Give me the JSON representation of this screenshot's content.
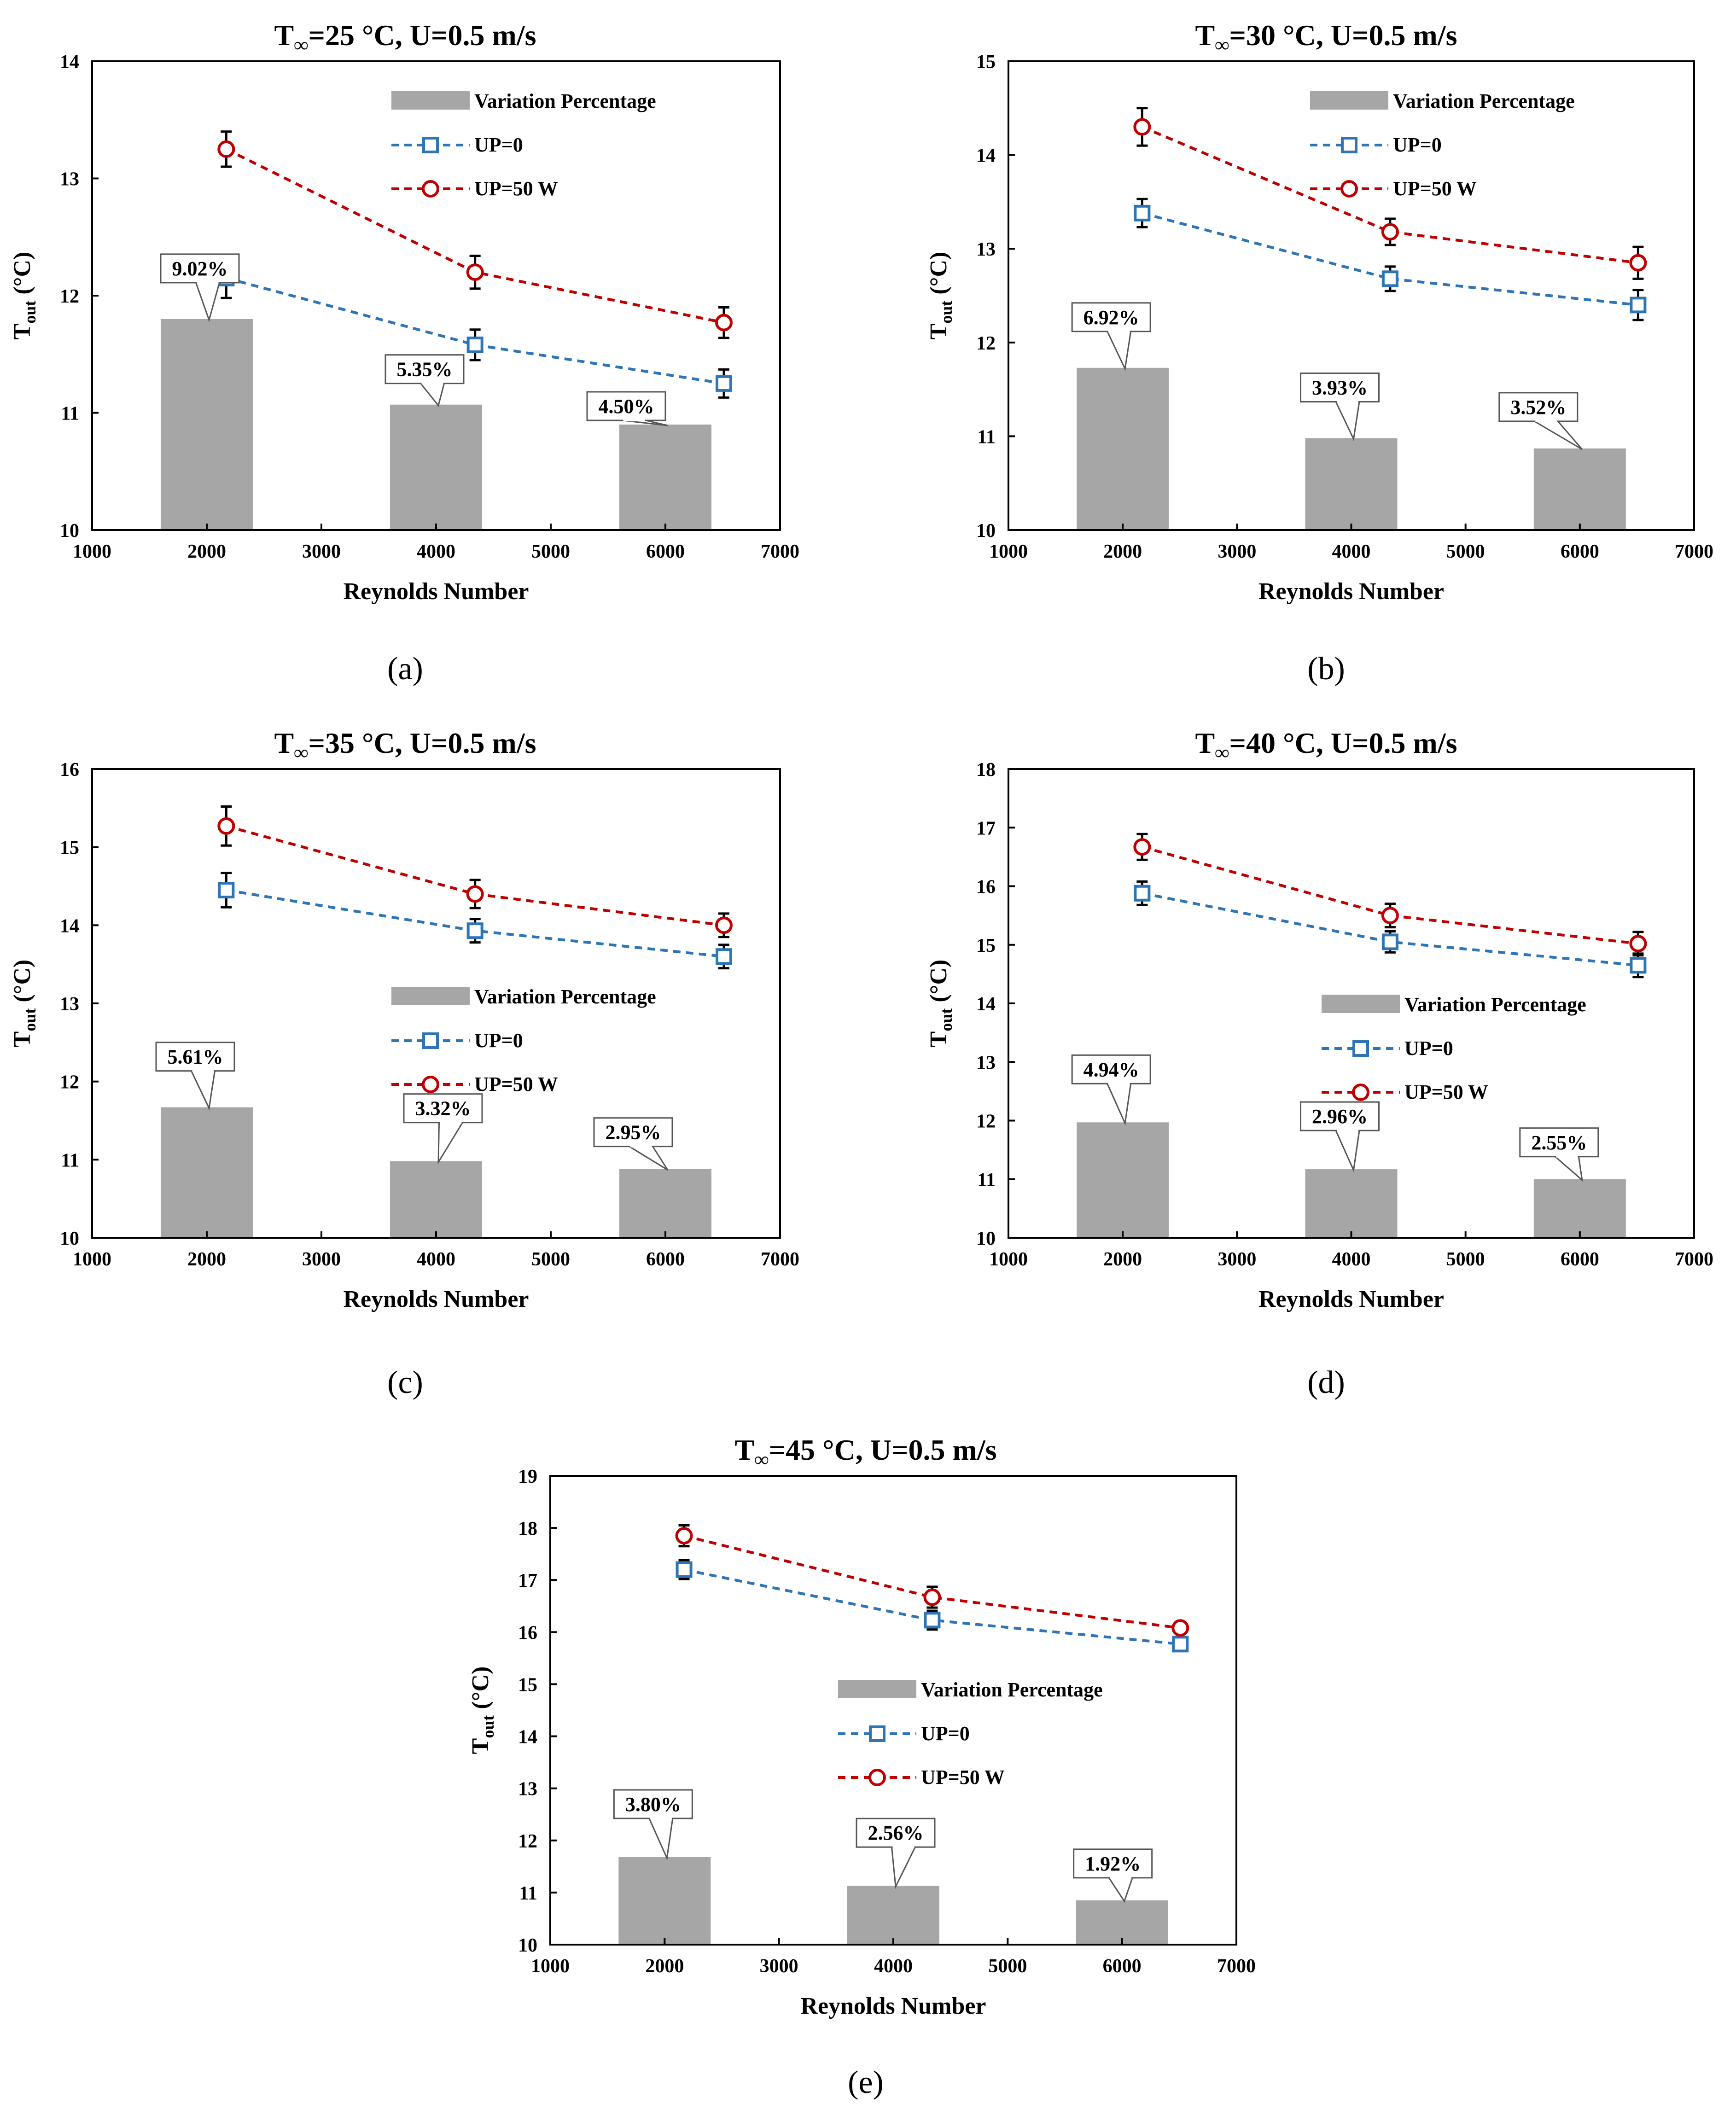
{
  "colors": {
    "bar": "#a6a6a6",
    "up0": "#2e75b6",
    "up50": "#c00000",
    "axis": "#000000"
  },
  "chart_data": [
    {
      "type": "bar+line",
      "panel": "(a)",
      "title_prefix": "T",
      "title_sub": "∞",
      "title_rest": "=25 °C, U=0.5 m/s",
      "xlabel": "Reynolds Number",
      "ylabel_main": "T",
      "ylabel_sub": "out",
      "ylabel_rest": " (°C)",
      "xlim": [
        1000,
        7000
      ],
      "xticks": [
        "1000",
        "2000",
        "3000",
        "4000",
        "5000",
        "6000",
        "7000"
      ],
      "ylim": [
        10,
        14
      ],
      "yticks": [
        "10",
        "11",
        "12",
        "13",
        "14"
      ],
      "legend": [
        "Variation Percentage",
        "UP=0",
        "UP=50 W"
      ],
      "bars": {
        "x": [
          2000,
          4000,
          6000
        ],
        "values": [
          11.8,
          11.07,
          10.9
        ],
        "labels": [
          "9.02%",
          "5.35%",
          "4.50%"
        ]
      },
      "series": [
        {
          "name": "UP=0",
          "x": [
            2170,
            4340,
            6510
          ],
          "values": [
            12.15,
            11.58,
            11.25
          ],
          "err": [
            0.17,
            0.13,
            0.12
          ]
        },
        {
          "name": "UP=50 W",
          "x": [
            2170,
            4340,
            6510
          ],
          "values": [
            13.25,
            12.2,
            11.77
          ],
          "err": [
            0.15,
            0.14,
            0.13
          ]
        }
      ]
    },
    {
      "type": "bar+line",
      "panel": "(b)",
      "title_prefix": "T",
      "title_sub": "∞",
      "title_rest": "=30 °C, U=0.5 m/s",
      "xlabel": "Reynolds Number",
      "ylabel_main": "T",
      "ylabel_sub": "out",
      "ylabel_rest": " (°C)",
      "xlim": [
        1000,
        7000
      ],
      "xticks": [
        "1000",
        "2000",
        "3000",
        "4000",
        "5000",
        "6000",
        "7000"
      ],
      "ylim": [
        10,
        15
      ],
      "yticks": [
        "10",
        "11",
        "12",
        "13",
        "14",
        "15"
      ],
      "legend": [
        "Variation Percentage",
        "UP=0",
        "UP=50 W"
      ],
      "bars": {
        "x": [
          2000,
          4000,
          6000
        ],
        "values": [
          11.73,
          10.98,
          10.87
        ],
        "labels": [
          "6.92%",
          "3.93%",
          "3.52%"
        ]
      },
      "series": [
        {
          "name": "UP=0",
          "x": [
            2170,
            4340,
            6510
          ],
          "values": [
            13.38,
            12.68,
            12.4
          ],
          "err": [
            0.15,
            0.13,
            0.16
          ]
        },
        {
          "name": "UP=50 W",
          "x": [
            2170,
            4340,
            6510
          ],
          "values": [
            14.3,
            13.18,
            12.85
          ],
          "err": [
            0.2,
            0.14,
            0.17
          ]
        }
      ]
    },
    {
      "type": "bar+line",
      "panel": "(c)",
      "title_prefix": "T",
      "title_sub": "∞",
      "title_rest": "=35 °C, U=0.5 m/s",
      "xlabel": "Reynolds Number",
      "ylabel_main": "T",
      "ylabel_sub": "out",
      "ylabel_rest": " (°C)",
      "xlim": [
        1000,
        7000
      ],
      "xticks": [
        "1000",
        "2000",
        "3000",
        "4000",
        "5000",
        "6000",
        "7000"
      ],
      "ylim": [
        10,
        16
      ],
      "yticks": [
        "10",
        "11",
        "12",
        "13",
        "14",
        "15",
        "16"
      ],
      "legend": [
        "Variation Percentage",
        "UP=0",
        "UP=50 W"
      ],
      "bars": {
        "x": [
          2000,
          4000,
          6000
        ],
        "values": [
          11.67,
          10.98,
          10.88
        ],
        "labels": [
          "5.61%",
          "3.32%",
          "2.95%"
        ]
      },
      "series": [
        {
          "name": "UP=0",
          "x": [
            2170,
            4340,
            6510
          ],
          "values": [
            14.45,
            13.93,
            13.6
          ],
          "err": [
            0.22,
            0.15,
            0.15
          ]
        },
        {
          "name": "UP=50 W",
          "x": [
            2170,
            4340,
            6510
          ],
          "values": [
            15.27,
            14.4,
            14.0
          ],
          "err": [
            0.25,
            0.18,
            0.15
          ]
        }
      ]
    },
    {
      "type": "bar+line",
      "panel": "(d)",
      "title_prefix": "T",
      "title_sub": "∞",
      "title_rest": "=40 °C, U=0.5 m/s",
      "xlabel": "Reynolds Number",
      "ylabel_main": "T",
      "ylabel_sub": "out",
      "ylabel_rest": " (°C)",
      "xlim": [
        1000,
        7000
      ],
      "xticks": [
        "1000",
        "2000",
        "3000",
        "4000",
        "5000",
        "6000",
        "7000"
      ],
      "ylim": [
        10,
        18
      ],
      "yticks": [
        "10",
        "11",
        "12",
        "13",
        "14",
        "15",
        "16",
        "17",
        "18"
      ],
      "legend": [
        "Variation Percentage",
        "UP=0",
        "UP=50 W"
      ],
      "bars": {
        "x": [
          2000,
          4000,
          6000
        ],
        "values": [
          11.97,
          11.17,
          11.0
        ],
        "labels": [
          "4.94%",
          "2.96%",
          "2.55%"
        ]
      },
      "series": [
        {
          "name": "UP=0",
          "x": [
            2170,
            4340,
            6510
          ],
          "values": [
            15.88,
            15.05,
            14.65
          ],
          "err": [
            0.2,
            0.18,
            0.2
          ]
        },
        {
          "name": "UP=50 W",
          "x": [
            2170,
            4340,
            6510
          ],
          "values": [
            16.67,
            15.5,
            15.02
          ],
          "err": [
            0.22,
            0.2,
            0.2
          ]
        }
      ]
    },
    {
      "type": "bar+line",
      "panel": "(e)",
      "title_prefix": "T",
      "title_sub": "∞",
      "title_rest": "=45 °C, U=0.5 m/s",
      "xlabel": "Reynolds Number",
      "ylabel_main": "T",
      "ylabel_sub": "out",
      "ylabel_rest": " (°C)",
      "xlim": [
        1000,
        7000
      ],
      "xticks": [
        "1000",
        "2000",
        "3000",
        "4000",
        "5000",
        "6000",
        "7000"
      ],
      "ylim": [
        10,
        19
      ],
      "yticks": [
        "10",
        "11",
        "12",
        "13",
        "14",
        "15",
        "16",
        "17",
        "18",
        "19"
      ],
      "legend": [
        "Variation Percentage",
        "UP=0",
        "UP=50 W"
      ],
      "bars": {
        "x": [
          2000,
          4000,
          6000
        ],
        "values": [
          11.68,
          11.13,
          10.85
        ],
        "labels": [
          "3.80%",
          "2.56%",
          "1.92%"
        ]
      },
      "series": [
        {
          "name": "UP=0",
          "x": [
            2170,
            4340,
            6510
          ],
          "values": [
            17.2,
            16.23,
            15.77
          ],
          "err": [
            0.18,
            0.18,
            0.1
          ]
        },
        {
          "name": "UP=50 W",
          "x": [
            2170,
            4340,
            6510
          ],
          "values": [
            17.85,
            16.67,
            16.08
          ],
          "err": [
            0.2,
            0.2,
            0.1
          ]
        }
      ]
    }
  ]
}
